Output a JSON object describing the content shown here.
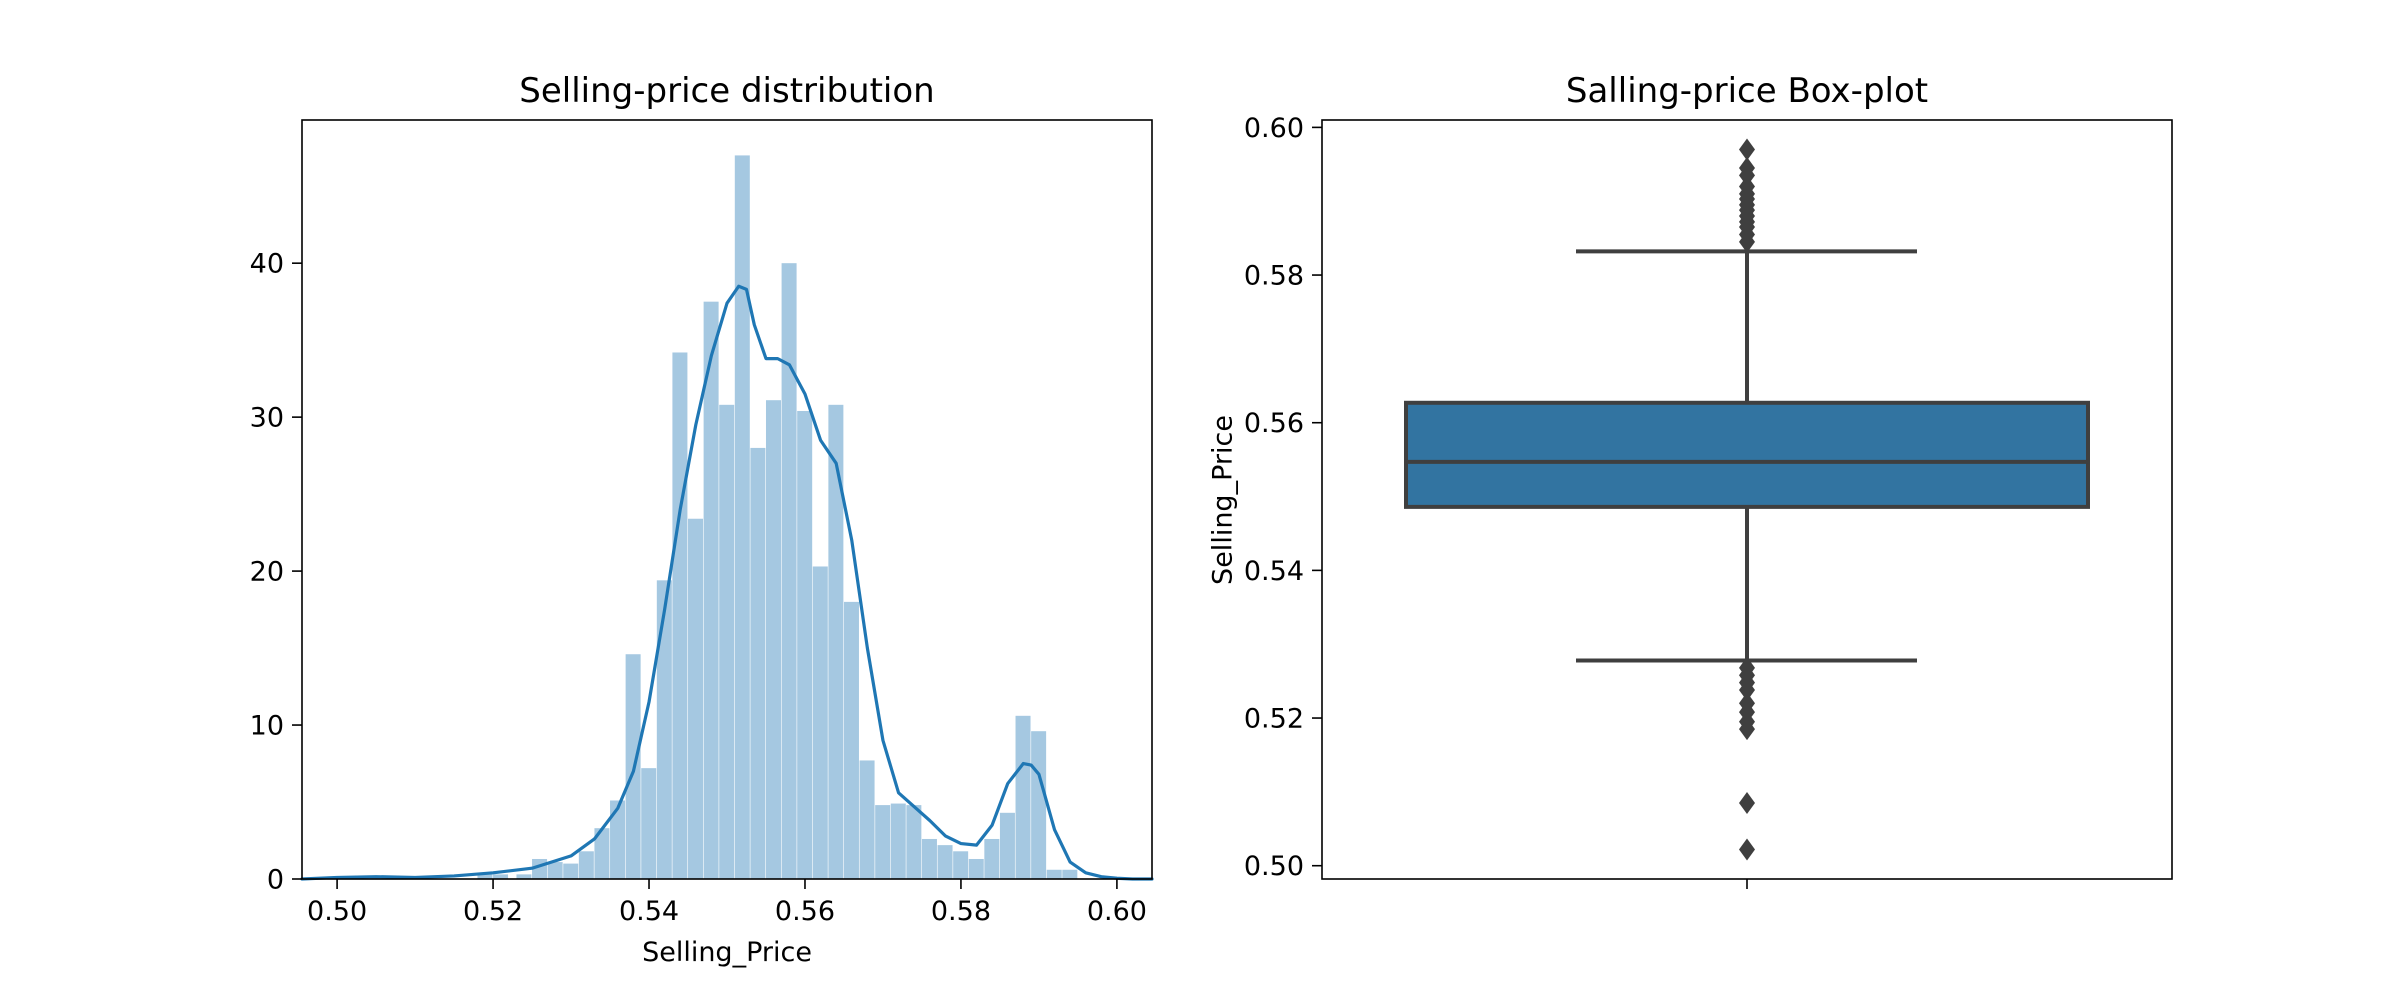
{
  "chart_data": [
    {
      "type": "histogram",
      "title": "Selling-price distribution",
      "xlabel": "Selling_Price",
      "ylabel": "",
      "xlim": [
        0.4955,
        0.6045
      ],
      "ylim": [
        0,
        49.3
      ],
      "xticks": [
        0.5,
        0.52,
        0.54,
        0.56,
        0.58,
        0.6
      ],
      "yticks": [
        0,
        10,
        20,
        30,
        40
      ],
      "grid": false,
      "colors": {
        "bars": "#a5c8e1",
        "kde": "#1f77b4"
      },
      "bins": [
        {
          "x0": 0.518,
          "x1": 0.52,
          "density": 0.3
        },
        {
          "x0": 0.52,
          "x1": 0.522,
          "density": 0.3
        },
        {
          "x0": 0.523,
          "x1": 0.525,
          "density": 0.3
        },
        {
          "x0": 0.525,
          "x1": 0.527,
          "density": 1.3
        },
        {
          "x0": 0.527,
          "x1": 0.529,
          "density": 1.1
        },
        {
          "x0": 0.529,
          "x1": 0.531,
          "density": 1.0
        },
        {
          "x0": 0.531,
          "x1": 0.533,
          "density": 1.8
        },
        {
          "x0": 0.533,
          "x1": 0.535,
          "density": 3.3
        },
        {
          "x0": 0.535,
          "x1": 0.537,
          "density": 5.1
        },
        {
          "x0": 0.537,
          "x1": 0.539,
          "density": 14.6
        },
        {
          "x0": 0.539,
          "x1": 0.541,
          "density": 7.2
        },
        {
          "x0": 0.541,
          "x1": 0.543,
          "density": 19.4
        },
        {
          "x0": 0.543,
          "x1": 0.545,
          "density": 34.2
        },
        {
          "x0": 0.545,
          "x1": 0.547,
          "density": 23.4
        },
        {
          "x0": 0.547,
          "x1": 0.549,
          "density": 37.5
        },
        {
          "x0": 0.549,
          "x1": 0.551,
          "density": 30.8
        },
        {
          "x0": 0.551,
          "x1": 0.553,
          "density": 47.0
        },
        {
          "x0": 0.553,
          "x1": 0.555,
          "density": 28.0
        },
        {
          "x0": 0.555,
          "x1": 0.557,
          "density": 31.1
        },
        {
          "x0": 0.557,
          "x1": 0.559,
          "density": 40.0
        },
        {
          "x0": 0.559,
          "x1": 0.561,
          "density": 30.4
        },
        {
          "x0": 0.561,
          "x1": 0.563,
          "density": 20.3
        },
        {
          "x0": 0.563,
          "x1": 0.565,
          "density": 30.8
        },
        {
          "x0": 0.565,
          "x1": 0.567,
          "density": 18.0
        },
        {
          "x0": 0.567,
          "x1": 0.569,
          "density": 7.7
        },
        {
          "x0": 0.569,
          "x1": 0.571,
          "density": 4.8
        },
        {
          "x0": 0.571,
          "x1": 0.573,
          "density": 4.9
        },
        {
          "x0": 0.573,
          "x1": 0.575,
          "density": 4.8
        },
        {
          "x0": 0.575,
          "x1": 0.577,
          "density": 2.6
        },
        {
          "x0": 0.577,
          "x1": 0.579,
          "density": 2.2
        },
        {
          "x0": 0.579,
          "x1": 0.581,
          "density": 1.8
        },
        {
          "x0": 0.581,
          "x1": 0.583,
          "density": 1.3
        },
        {
          "x0": 0.583,
          "x1": 0.585,
          "density": 2.6
        },
        {
          "x0": 0.585,
          "x1": 0.587,
          "density": 4.3
        },
        {
          "x0": 0.587,
          "x1": 0.589,
          "density": 10.6
        },
        {
          "x0": 0.589,
          "x1": 0.591,
          "density": 9.6
        },
        {
          "x0": 0.591,
          "x1": 0.593,
          "density": 0.6
        },
        {
          "x0": 0.593,
          "x1": 0.595,
          "density": 0.6
        }
      ],
      "kde": {
        "x": [
          0.4955,
          0.5,
          0.505,
          0.51,
          0.515,
          0.52,
          0.525,
          0.53,
          0.533,
          0.536,
          0.538,
          0.54,
          0.542,
          0.544,
          0.546,
          0.548,
          0.55,
          0.5515,
          0.5525,
          0.5535,
          0.555,
          0.5565,
          0.558,
          0.56,
          0.562,
          0.564,
          0.566,
          0.568,
          0.57,
          0.572,
          0.574,
          0.576,
          0.578,
          0.58,
          0.582,
          0.584,
          0.586,
          0.588,
          0.589,
          0.59,
          0.592,
          0.594,
          0.596,
          0.598,
          0.6,
          0.602,
          0.6045
        ],
        "y": [
          0.0,
          0.1,
          0.15,
          0.1,
          0.2,
          0.4,
          0.7,
          1.5,
          2.6,
          4.6,
          7.0,
          11.5,
          17.5,
          24.0,
          29.5,
          34.0,
          37.4,
          38.5,
          38.3,
          36.0,
          33.8,
          33.8,
          33.4,
          31.5,
          28.5,
          27.0,
          22.0,
          15.0,
          9.0,
          5.6,
          4.7,
          3.8,
          2.8,
          2.3,
          2.2,
          3.5,
          6.2,
          7.5,
          7.4,
          6.8,
          3.2,
          1.1,
          0.4,
          0.15,
          0.05,
          0.0,
          0.0
        ]
      }
    },
    {
      "type": "box",
      "title": "Salling-price Box-plot",
      "xlabel": "",
      "ylabel": "Selling_Price",
      "ylim": [
        0.4982,
        0.601
      ],
      "yticks": [
        "0.50",
        "0.52",
        "0.54",
        "0.56",
        "0.58",
        "0.60"
      ],
      "grid": false,
      "colors": {
        "box": "#3274a1",
        "lines": "#3f3f3f"
      },
      "whisker_low": 0.5278,
      "q1": 0.5486,
      "median": 0.5547,
      "q3": 0.5627,
      "whisker_high": 0.5832,
      "outliers_high": [
        0.5845,
        0.5855,
        0.5865,
        0.5872,
        0.588,
        0.5888,
        0.5895,
        0.5903,
        0.591,
        0.592,
        0.5935,
        0.5945,
        0.597
      ],
      "outliers_low": [
        0.5268,
        0.5258,
        0.5248,
        0.5238,
        0.522,
        0.5208,
        0.5195,
        0.5185,
        0.5085,
        0.5022
      ]
    }
  ]
}
